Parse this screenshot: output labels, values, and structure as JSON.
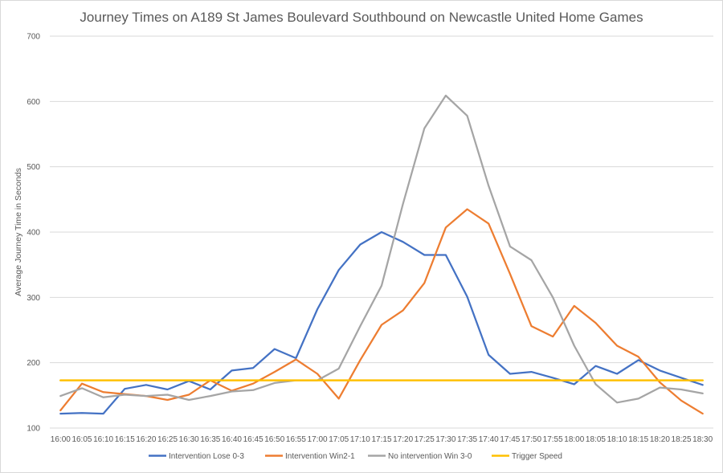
{
  "chart_data": {
    "type": "line",
    "title": "Journey Times on A189 St James Boulevard Southbound on Newcastle United Home Games",
    "xlabel": "",
    "ylabel": "Average Journey Time in Seconds",
    "ylim": [
      100,
      700
    ],
    "yticks": [
      "100",
      "200",
      "300",
      "400",
      "500",
      "600",
      "700"
    ],
    "grid": true,
    "legend_position": "bottom",
    "categories": [
      "16:00",
      "16:05",
      "16:10",
      "16:15",
      "16:20",
      "16:25",
      "16:30",
      "16:35",
      "16:40",
      "16:45",
      "16:50",
      "16:55",
      "17:00",
      "17:05",
      "17:10",
      "17:15",
      "17:20",
      "17:25",
      "17:30",
      "17:35",
      "17:40",
      "17:45",
      "17:50",
      "17:55",
      "18:00",
      "18:05",
      "18:10",
      "18:15",
      "18:20",
      "18:25",
      "18:30"
    ],
    "series": [
      {
        "name": "Intervention Lose 0-3",
        "color": "#4472c4",
        "values": [
          122,
          123,
          122,
          160,
          166,
          159,
          172,
          159,
          188,
          192,
          221,
          207,
          282,
          342,
          381,
          400,
          385,
          365,
          365,
          301,
          212,
          183,
          186,
          177,
          167,
          195,
          183,
          204,
          188,
          177,
          166
        ]
      },
      {
        "name": "Intervention Win2-1",
        "color": "#ed7d31",
        "values": [
          127,
          168,
          155,
          152,
          149,
          143,
          151,
          173,
          157,
          168,
          186,
          205,
          183,
          145,
          204,
          258,
          280,
          322,
          407,
          435,
          413,
          336,
          256,
          240,
          287,
          261,
          226,
          209,
          170,
          142,
          122
        ]
      },
      {
        "name": "No intervention Win 3-0",
        "color": "#a5a5a5",
        "values": [
          149,
          161,
          147,
          151,
          149,
          151,
          143,
          149,
          156,
          158,
          169,
          173,
          173,
          191,
          256,
          318,
          443,
          559,
          609,
          578,
          471,
          378,
          357,
          300,
          226,
          167,
          139,
          145,
          162,
          159,
          153
        ]
      },
      {
        "name": "Trigger Speed",
        "color": "#ffc000",
        "values": [
          173,
          173,
          173,
          173,
          173,
          173,
          173,
          173,
          173,
          173,
          173,
          173,
          173,
          173,
          173,
          173,
          173,
          173,
          173,
          173,
          173,
          173,
          173,
          173,
          173,
          173,
          173,
          173,
          173,
          173,
          173
        ]
      }
    ]
  }
}
